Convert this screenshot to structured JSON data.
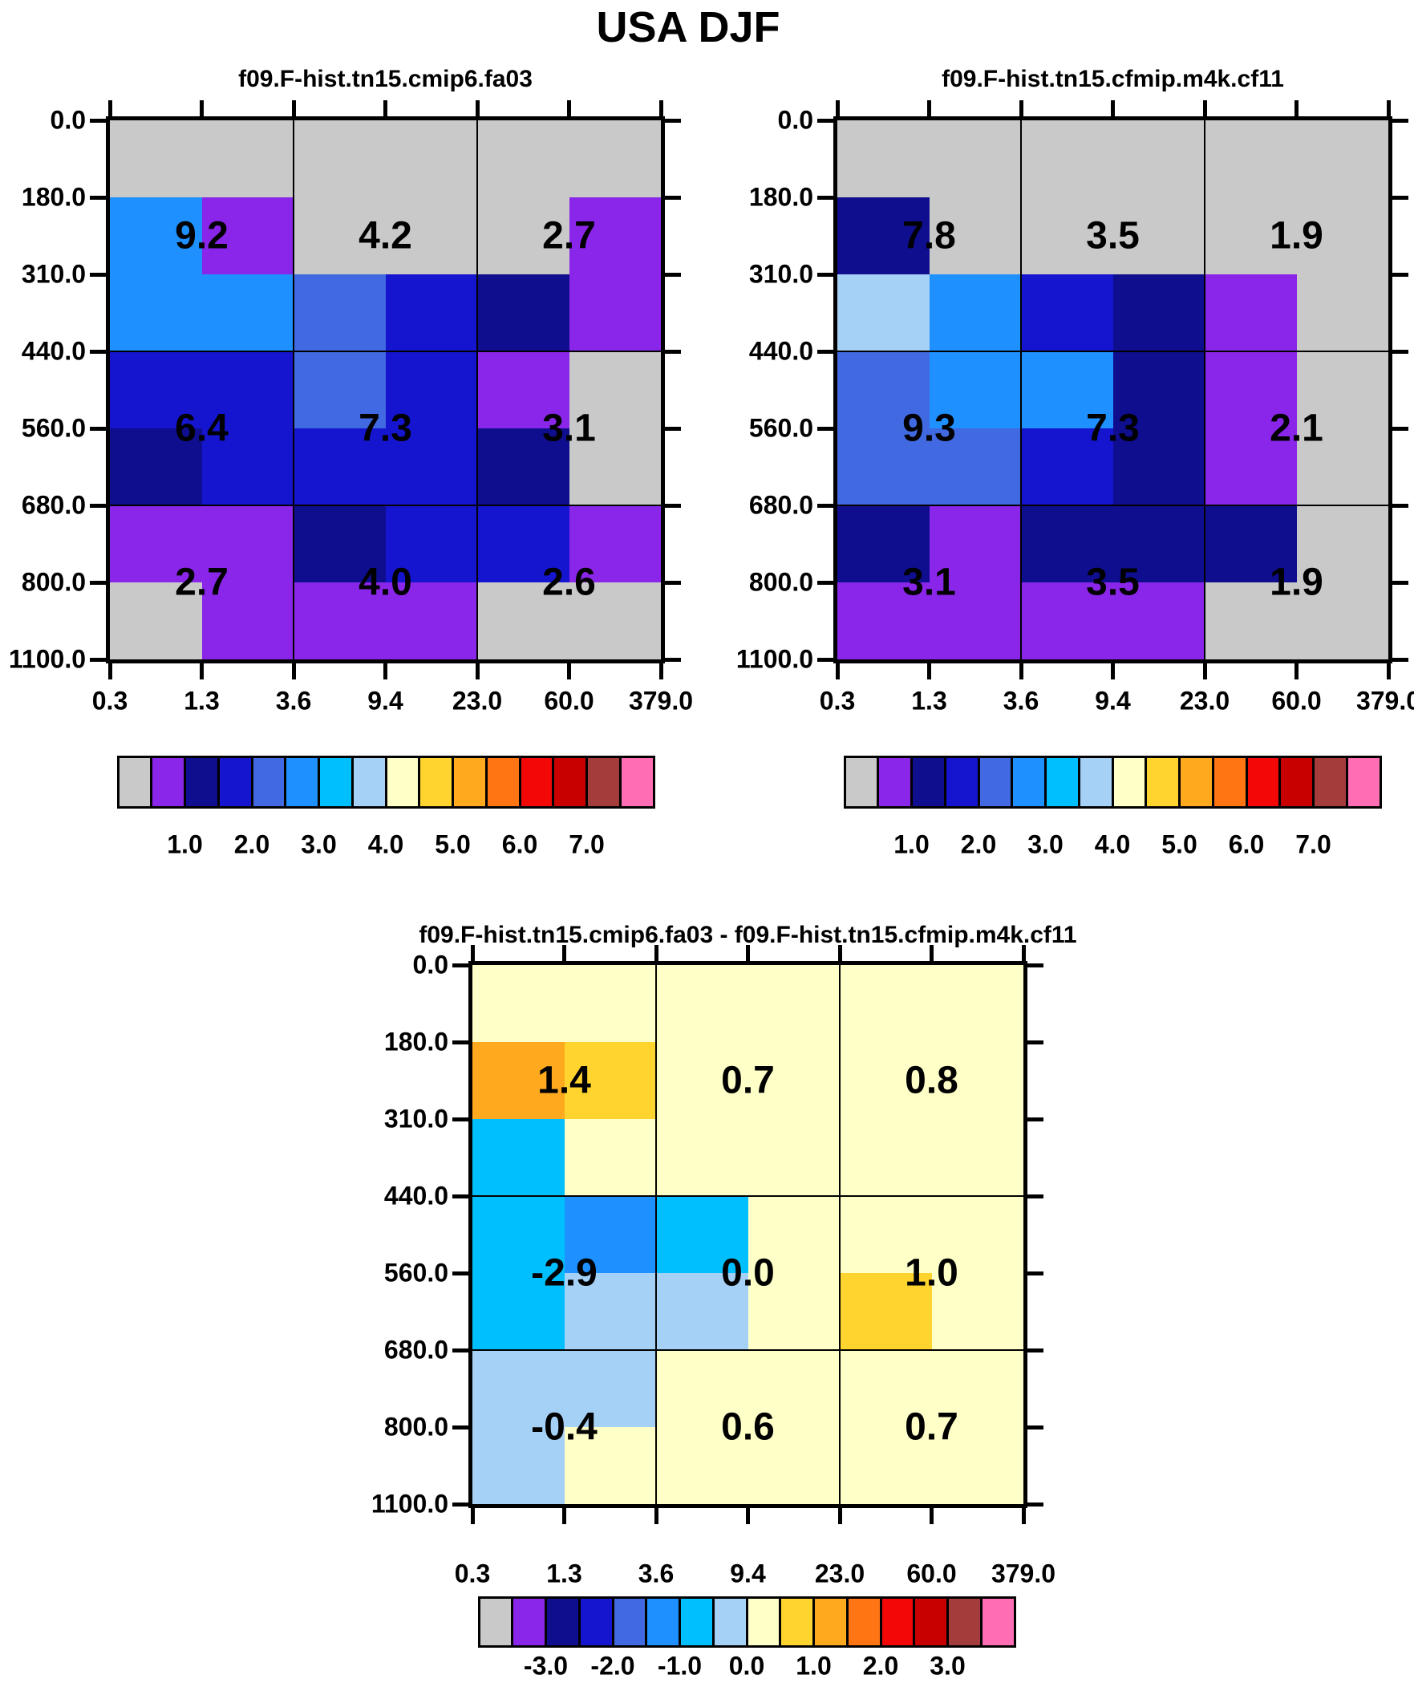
{
  "title": "USA DJF",
  "palette": {
    "gray": "#C9C9C9",
    "purple": "#8A26E9",
    "navy": "#0E0E8E",
    "blue": "#1515CF",
    "royal": "#4169E1",
    "dodger": "#1E90FF",
    "deepsky": "#00BFFF",
    "lightblue": "#A6D1F7",
    "paleyellow": "#FFFFC8",
    "gold": "#FFD42E",
    "orange": "#FFA91E",
    "darkorange": "#FF7514",
    "red": "#F40707",
    "darkred": "#C80000",
    "brick": "#A53C3C",
    "pink": "#FF6EB4"
  },
  "colorbar_sequence": [
    "gray",
    "purple",
    "navy",
    "blue",
    "royal",
    "dodger",
    "deepsky",
    "lightblue",
    "paleyellow",
    "gold",
    "orange",
    "darkorange",
    "red",
    "darkred",
    "brick",
    "pink"
  ],
  "chart_data": {
    "type": "heatmap",
    "suptitle": "USA DJF",
    "x_bin_edges": [
      0.3,
      1.3,
      3.6,
      9.4,
      23.0,
      60.0,
      379.0
    ],
    "y_bin_edges": [
      0.0,
      180.0,
      310.0,
      440.0,
      560.0,
      680.0,
      800.0,
      1100.0
    ],
    "block_x_ranges": [
      [
        0.3,
        3.6
      ],
      [
        3.6,
        23.0
      ],
      [
        23.0,
        379.0
      ]
    ],
    "block_y_ranges": [
      [
        0.0,
        440.0
      ],
      [
        440.0,
        680.0
      ],
      [
        680.0,
        1100.0
      ]
    ],
    "legend_position": "below-each-panel",
    "grid": "block-dividers at x=3.6, x=23.0 and y=440.0, y=680.0",
    "colorbars": {
      "colorbar_top": {
        "first_boundary": 0.5,
        "step": 0.5,
        "tick_labels": [
          1.0,
          2.0,
          3.0,
          4.0,
          5.0,
          6.0,
          7.0
        ]
      },
      "colorbar_diff": {
        "first_boundary": -3.5,
        "step": 0.5,
        "tick_labels": [
          -3.0,
          -2.0,
          -1.0,
          0.0,
          1.0,
          2.0,
          3.0
        ]
      }
    },
    "panels": [
      {
        "title": "f09.F-hist.tn15.cmip6.fa03",
        "colorbar": "colorbar_top",
        "cell_color_classes": [
          [
            "gray",
            "gray",
            "gray",
            "gray",
            "gray",
            "gray"
          ],
          [
            "dodger",
            "purple",
            "gray",
            "gray",
            "gray",
            "purple"
          ],
          [
            "dodger",
            "dodger",
            "royal",
            "blue",
            "navy",
            "purple"
          ],
          [
            "blue",
            "blue",
            "royal",
            "blue",
            "purple",
            "gray"
          ],
          [
            "navy",
            "blue",
            "blue",
            "blue",
            "navy",
            "gray"
          ],
          [
            "purple",
            "purple",
            "navy",
            "blue",
            "blue",
            "purple"
          ],
          [
            "gray",
            "purple",
            "purple",
            "purple",
            "gray",
            "gray"
          ]
        ],
        "block_means": [
          [
            9.2,
            4.2,
            2.7
          ],
          [
            6.4,
            7.3,
            3.1
          ],
          [
            2.7,
            4.0,
            2.6
          ]
        ]
      },
      {
        "title": "f09.F-hist.tn15.cfmip.m4k.cf11",
        "colorbar": "colorbar_top",
        "cell_color_classes": [
          [
            "gray",
            "gray",
            "gray",
            "gray",
            "gray",
            "gray"
          ],
          [
            "navy",
            "gray",
            "gray",
            "gray",
            "gray",
            "gray"
          ],
          [
            "lightblue",
            "dodger",
            "blue",
            "navy",
            "purple",
            "gray"
          ],
          [
            "royal",
            "dodger",
            "dodger",
            "navy",
            "purple",
            "gray"
          ],
          [
            "royal",
            "royal",
            "blue",
            "navy",
            "purple",
            "gray"
          ],
          [
            "navy",
            "purple",
            "navy",
            "navy",
            "navy",
            "gray"
          ],
          [
            "purple",
            "purple",
            "purple",
            "purple",
            "gray",
            "gray"
          ]
        ],
        "block_means": [
          [
            7.8,
            3.5,
            1.9
          ],
          [
            9.3,
            7.3,
            2.1
          ],
          [
            3.1,
            3.5,
            1.9
          ]
        ]
      },
      {
        "title": "f09.F-hist.tn15.cmip6.fa03 - f09.F-hist.tn15.cfmip.m4k.cf11",
        "colorbar": "colorbar_diff",
        "cell_color_classes": [
          [
            "paleyellow",
            "paleyellow",
            "paleyellow",
            "paleyellow",
            "paleyellow",
            "paleyellow"
          ],
          [
            "orange",
            "gold",
            "paleyellow",
            "paleyellow",
            "paleyellow",
            "paleyellow"
          ],
          [
            "deepsky",
            "paleyellow",
            "paleyellow",
            "paleyellow",
            "paleyellow",
            "paleyellow"
          ],
          [
            "deepsky",
            "dodger",
            "deepsky",
            "paleyellow",
            "paleyellow",
            "paleyellow"
          ],
          [
            "deepsky",
            "lightblue",
            "lightblue",
            "paleyellow",
            "gold",
            "paleyellow"
          ],
          [
            "lightblue",
            "lightblue",
            "paleyellow",
            "paleyellow",
            "paleyellow",
            "paleyellow"
          ],
          [
            "lightblue",
            "paleyellow",
            "paleyellow",
            "paleyellow",
            "paleyellow",
            "paleyellow"
          ]
        ],
        "block_means": [
          [
            1.4,
            0.7,
            0.8
          ],
          [
            -2.9,
            0.0,
            1.0
          ],
          [
            -0.4,
            0.6,
            0.7
          ]
        ]
      }
    ]
  }
}
